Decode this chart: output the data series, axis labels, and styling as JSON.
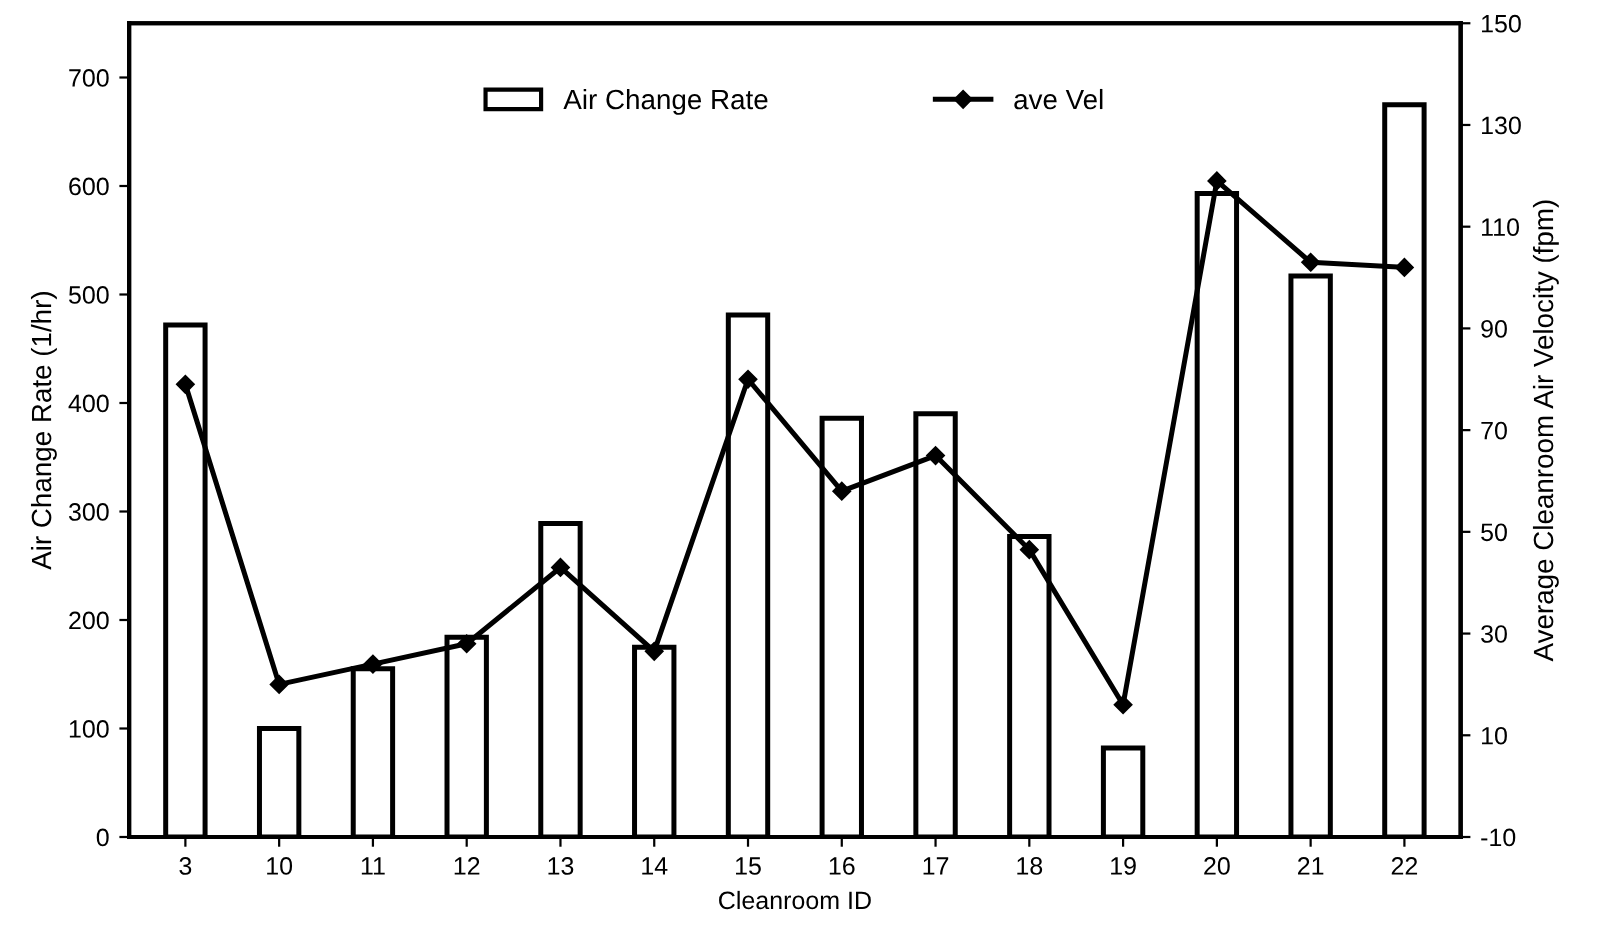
{
  "chart_data": {
    "type": "bar",
    "xlabel": "Cleanroom ID",
    "ylabel": "Air Change Rate (1/hr)",
    "y2label": "Average Cleanroom Air Velocity (fpm)",
    "categories": [
      "3",
      "10",
      "11",
      "12",
      "13",
      "14",
      "15",
      "16",
      "17",
      "18",
      "19",
      "20",
      "21",
      "22"
    ],
    "series": [
      {
        "name": "Air Change Rate",
        "color": "#ffffff",
        "values": [
          472,
          100,
          155,
          184,
          289,
          175,
          481,
          386,
          390,
          277,
          82,
          593,
          517,
          675
        ]
      },
      {
        "name": "ave Vel",
        "type": "line",
        "axis": "y2",
        "color": "#000000",
        "marker": "diamond",
        "values": [
          79,
          20,
          24,
          28,
          43,
          26.5,
          80,
          58,
          65,
          46.5,
          16,
          119,
          103,
          102
        ]
      }
    ],
    "ylim": [
      0,
      750
    ],
    "yticks": [
      0,
      100,
      200,
      300,
      400,
      500,
      600,
      700
    ],
    "y2lim": [
      -10,
      150
    ],
    "y2ticks": [
      -10,
      10,
      30,
      50,
      70,
      90,
      110,
      130,
      150
    ],
    "grid": false,
    "legend": "top"
  }
}
